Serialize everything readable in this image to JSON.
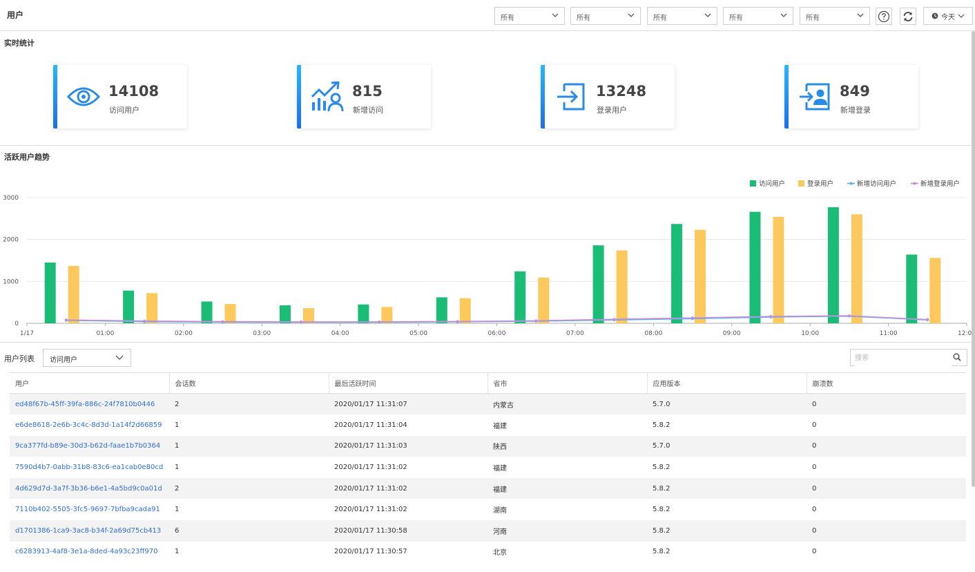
{
  "header": {
    "title": "用户",
    "filters": [
      "所有",
      "所有",
      "所有",
      "所有",
      "所有"
    ],
    "today_label": "今天"
  },
  "realtime": {
    "title": "实时统计",
    "cards": [
      {
        "value": "14108",
        "label": "访问用户",
        "icon": "eye-icon"
      },
      {
        "value": "815",
        "label": "新增访问",
        "icon": "growth-chart-icon"
      },
      {
        "value": "13248",
        "label": "登录用户",
        "icon": "login-arrow-icon"
      },
      {
        "value": "849",
        "label": "新增登录",
        "icon": "user-login-icon"
      }
    ]
  },
  "trend": {
    "title": "活跃用户趋势"
  },
  "chart_data": {
    "type": "bar",
    "categories": [
      "00:30",
      "01:30",
      "02:30",
      "03:30",
      "04:30",
      "05:30",
      "06:30",
      "07:30",
      "08:30",
      "09:30",
      "10:30",
      "11:30"
    ],
    "x_tick_labels": [
      "1/17",
      "01:00",
      "02:00",
      "03:00",
      "04:00",
      "05:00",
      "06:00",
      "07:00",
      "08:00",
      "09:00",
      "10:00",
      "11:00",
      "12:00"
    ],
    "y_tick_labels": [
      "0",
      "1000",
      "2000",
      "3000"
    ],
    "ylim": [
      0,
      3300
    ],
    "grid": true,
    "legend_position": "top-right",
    "series": [
      {
        "name": "访问用户",
        "type": "bar",
        "color": "#1bbc76",
        "values": [
          1450,
          780,
          520,
          430,
          450,
          620,
          1240,
          1860,
          2370,
          2660,
          2770,
          1640
        ]
      },
      {
        "name": "登录用户",
        "type": "bar",
        "color": "#fdc85c",
        "values": [
          1370,
          720,
          460,
          360,
          390,
          600,
          1090,
          1740,
          2230,
          2540,
          2600,
          1560
        ]
      },
      {
        "name": "新增访问用户",
        "type": "line",
        "color": "#5db3ea",
        "values": [
          70,
          40,
          30,
          25,
          25,
          35,
          50,
          80,
          110,
          150,
          170,
          80
        ]
      },
      {
        "name": "新增登录用户",
        "type": "line",
        "color": "#c68fd3",
        "values": [
          80,
          55,
          40,
          35,
          35,
          45,
          60,
          95,
          130,
          165,
          180,
          90
        ]
      }
    ]
  },
  "user_list": {
    "label": "用户列表",
    "select_value": "访问用户",
    "search_placeholder": "搜索",
    "columns": [
      "用户",
      "会话数",
      "最后活跃时间",
      "省市",
      "应用版本",
      "崩溃数"
    ],
    "rows": [
      [
        "ed48f67b-45ff-39fa-886c-24f7810b0446",
        "2",
        "2020/01/17 11:31:07",
        "内蒙古",
        "5.7.0",
        "0"
      ],
      [
        "e6de8618-2e6b-3c4c-8d3d-1a14f2d66859",
        "1",
        "2020/01/17 11:31:04",
        "福建",
        "5.8.2",
        "0"
      ],
      [
        "9ca377fd-b89e-30d3-b62d-faae1b7b0364",
        "1",
        "2020/01/17 11:31:03",
        "陕西",
        "5.7.0",
        "0"
      ],
      [
        "7590d4b7-0abb-31b8-83c6-ea1cab0e80cd",
        "1",
        "2020/01/17 11:31:02",
        "福建",
        "5.8.2",
        "0"
      ],
      [
        "4d629d7d-3a7f-3b36-b6e1-4a5bd9c0a01d",
        "2",
        "2020/01/17 11:31:02",
        "福建",
        "5.8.2",
        "0"
      ],
      [
        "7110b402-5505-3fc5-9697-7bfba9cada91",
        "1",
        "2020/01/17 11:31:02",
        "湖南",
        "5.8.2",
        "0"
      ],
      [
        "d1701386-1ca9-3ac8-b34f-2a69d75cb413",
        "6",
        "2020/01/17 11:30:58",
        "河南",
        "5.8.2",
        "0"
      ],
      [
        "c6283913-4af8-3e1a-8ded-4a93c23ff970",
        "1",
        "2020/01/17 11:30:57",
        "北京",
        "5.8.2",
        "0"
      ]
    ]
  }
}
